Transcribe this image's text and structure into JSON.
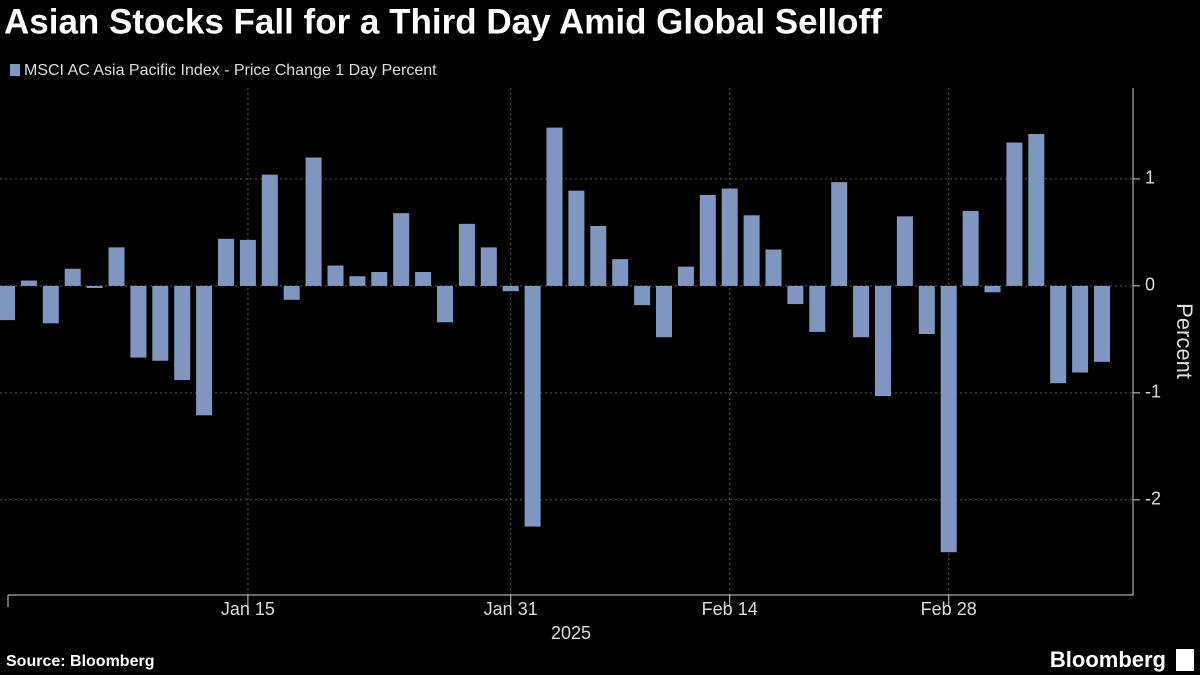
{
  "chart_data": {
    "type": "bar",
    "title": "Asian Stocks Fall for a Third Day Amid Global Selloff",
    "xlabel": "2025",
    "ylabel": "Percent",
    "categories": [
      null,
      null,
      null,
      null,
      null,
      null,
      null,
      null,
      null,
      null,
      null,
      "Jan 15",
      null,
      null,
      null,
      null,
      null,
      null,
      null,
      null,
      null,
      null,
      null,
      "Jan 31",
      null,
      null,
      null,
      null,
      null,
      null,
      null,
      null,
      null,
      "Feb 14",
      null,
      null,
      null,
      null,
      null,
      null,
      null,
      null,
      null,
      "Feb 28",
      null,
      null,
      null,
      null,
      null,
      null,
      null
    ],
    "series": [
      {
        "name": "MSCI AC Asia Pacific Index - Price Change 1 Day Percent",
        "color": "#7f97c0",
        "values": [
          -0.32,
          0.05,
          -0.35,
          0.16,
          -0.02,
          0.36,
          -0.67,
          -0.7,
          -0.88,
          -1.21,
          0.44,
          0.43,
          1.04,
          -0.13,
          1.2,
          0.19,
          0.09,
          0.13,
          0.68,
          0.13,
          -0.34,
          0.58,
          0.36,
          -0.05,
          -2.25,
          1.48,
          0.89,
          0.56,
          0.25,
          -0.18,
          -0.48,
          0.18,
          0.85,
          0.91,
          0.66,
          0.34,
          -0.17,
          -0.43,
          0.97,
          -0.48,
          -1.03,
          0.65,
          -0.45,
          -2.49,
          0.7,
          -0.06,
          1.34,
          1.42,
          -0.91,
          -0.81,
          -0.71
        ]
      }
    ],
    "ylim": [
      -2.89,
      1.85
    ],
    "yticks": [
      -2,
      -1,
      0,
      1
    ],
    "grid": true,
    "legend": "top-left"
  },
  "footer": {
    "source": "Source: Bloomberg",
    "brand": "Bloomberg"
  }
}
